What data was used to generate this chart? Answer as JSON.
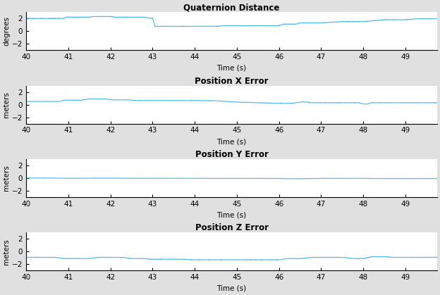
{
  "title_quat": "Quaternion Distance",
  "title_x": "Position X Error",
  "title_y": "Position Y Error",
  "title_z": "Position Z Error",
  "xlabel": "Time (s)",
  "ylabel_quat": "degrees",
  "ylabel_pos": "meters",
  "xlim": [
    40,
    49.75
  ],
  "xticks": [
    40,
    41,
    42,
    43,
    44,
    45,
    46,
    47,
    48,
    49
  ],
  "ylim": [
    -3,
    3
  ],
  "yticks": [
    -2,
    0,
    2
  ],
  "line_color": "#4db8e8",
  "background_color": "#e0e0e0",
  "axes_bg": "#ffffff",
  "title_fontsize": 8.5,
  "label_fontsize": 7.5,
  "tick_fontsize": 7.5
}
